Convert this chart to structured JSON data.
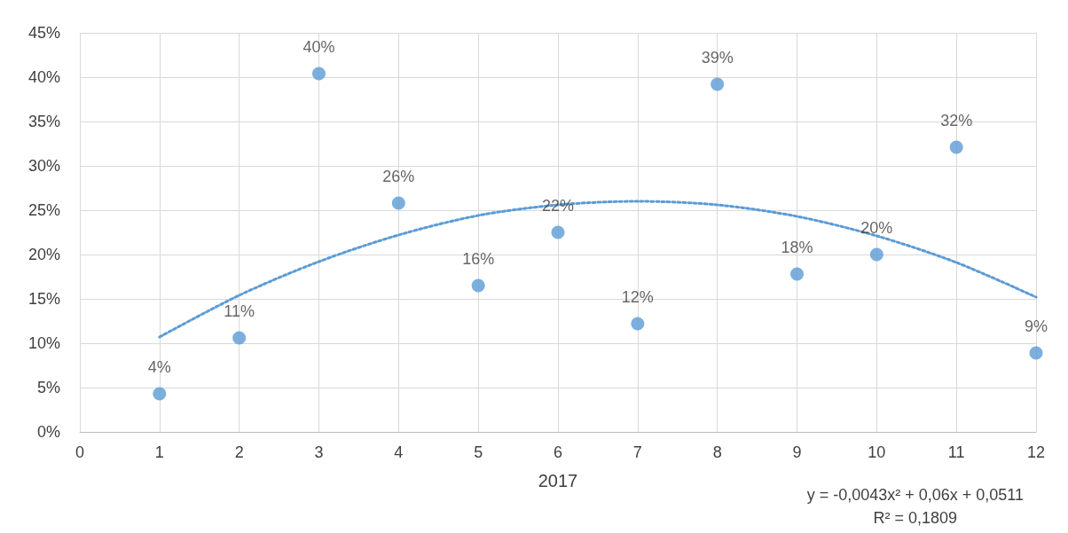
{
  "chart_data": {
    "type": "scatter",
    "xlabel": "2017",
    "x": [
      1,
      2,
      3,
      4,
      5,
      6,
      7,
      8,
      9,
      10,
      11,
      12
    ],
    "xlim": [
      0,
      12
    ],
    "xticks": [
      0,
      1,
      2,
      3,
      4,
      5,
      6,
      7,
      8,
      9,
      10,
      11,
      12
    ],
    "ylim": [
      0,
      45
    ],
    "yticks": [
      {
        "value": 0,
        "label": "0%"
      },
      {
        "value": 5,
        "label": "5%"
      },
      {
        "value": 10,
        "label": "10%"
      },
      {
        "value": 15,
        "label": "15%"
      },
      {
        "value": 20,
        "label": "20%"
      },
      {
        "value": 25,
        "label": "25%"
      },
      {
        "value": 30,
        "label": "30%"
      },
      {
        "value": 35,
        "label": "35%"
      },
      {
        "value": 40,
        "label": "40%"
      },
      {
        "value": 45,
        "label": "45%"
      }
    ],
    "grid": true,
    "marker": "circle",
    "series": [
      {
        "color": "#5b9bd5",
        "values": [
          4.3,
          10.6,
          40.4,
          25.8,
          16.5,
          22.5,
          12.2,
          39.2,
          17.8,
          20.0,
          32.1,
          8.9
        ],
        "value_labels": [
          "4%",
          "11%",
          "40%",
          "26%",
          "16%",
          "22%",
          "12%",
          "39%",
          "18%",
          "20%",
          "32%",
          "9%"
        ]
      },
      {
        "type": "line",
        "color": "#5b9bd5",
        "line_style": "dotted",
        "marker": "none",
        "x": [
          1,
          2,
          3,
          4,
          5,
          6,
          7,
          8,
          9,
          10,
          11,
          12
        ],
        "values": [
          10.7,
          15.4,
          19.2,
          22.2,
          24.4,
          25.6,
          26.0,
          25.6,
          24.3,
          22.1,
          19.1,
          15.2
        ]
      }
    ],
    "annotations": [
      "y = -0,0043x² + 0,06x + 0,0511\nR² = 0,1809"
    ]
  }
}
